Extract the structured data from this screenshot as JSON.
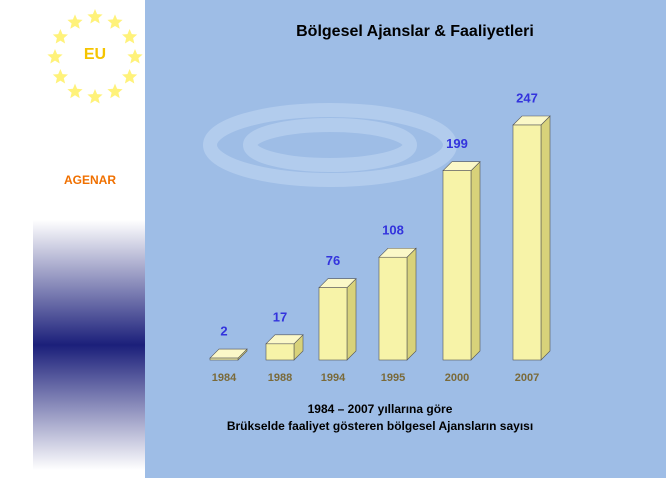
{
  "logo": "EU",
  "sidebar": "AGENAR",
  "chart_data": {
    "type": "bar",
    "title": "Bölgesel Ajanslar & Faaliyetleri",
    "categories": [
      "1984",
      "1988",
      "1994",
      "1995",
      "2000",
      "2007"
    ],
    "values": [
      2,
      17,
      76,
      108,
      199,
      247
    ],
    "color": "#f7f3a8",
    "caption": [
      "1984 – 2007 yıllarına göre",
      "Brükselde faaliyet gösteren bölgesel Ajansların sayısı"
    ]
  }
}
